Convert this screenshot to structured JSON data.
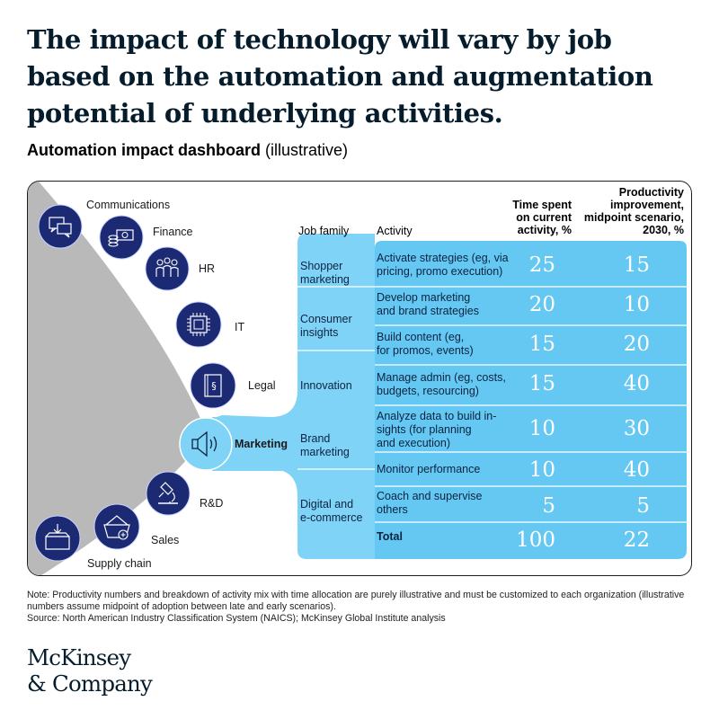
{
  "title": "The impact of technology will vary by job based on the automation and augmentation potential of underlying activities.",
  "subtitle_bold": "Automation impact dashboard",
  "subtitle_rest": "(illustrative)",
  "functions": [
    {
      "label": "Communications",
      "icon": "chat-bubbles-icon"
    },
    {
      "label": "Finance",
      "icon": "money-icon"
    },
    {
      "label": "HR",
      "icon": "people-icon"
    },
    {
      "label": "IT",
      "icon": "chip-icon"
    },
    {
      "label": "Legal",
      "icon": "law-book-icon"
    },
    {
      "label": "Marketing",
      "icon": "speaker-icon"
    },
    {
      "label": "R&D",
      "icon": "microscope-icon"
    },
    {
      "label": "Sales",
      "icon": "basket-icon"
    },
    {
      "label": "Supply chain",
      "icon": "box-icon"
    }
  ],
  "headers": {
    "job_family": "Job family",
    "activity": "Activity",
    "time_spent": [
      "Time spent",
      "on current",
      "activity, %"
    ],
    "productivity": [
      "Productivity",
      "improvement,",
      "midpoint scenario,",
      "2030, %"
    ]
  },
  "job_families": [
    [
      "Shopper",
      "marketing"
    ],
    [
      "Consumer",
      "insights"
    ],
    [
      "Innovation"
    ],
    [
      "Brand",
      "marketing"
    ],
    [
      "Digital and",
      "e-commerce"
    ]
  ],
  "rows": [
    {
      "activity": [
        "Activate strategies (eg, via",
        "pricing, promo execution)"
      ],
      "time": "25",
      "prod": "15"
    },
    {
      "activity": [
        "Develop marketing",
        "and brand strategies"
      ],
      "time": "20",
      "prod": "10"
    },
    {
      "activity": [
        "Build content (eg,",
        "for promos, events)"
      ],
      "time": "15",
      "prod": "20"
    },
    {
      "activity": [
        "Manage admin (eg, costs,",
        "budgets, resourcing)"
      ],
      "time": "15",
      "prod": "40"
    },
    {
      "activity": [
        "Analyze data to build in-",
        "sights (for planning",
        "and execution)"
      ],
      "time": "10",
      "prod": "30"
    },
    {
      "activity": [
        "Monitor performance"
      ],
      "time": "10",
      "prod": "40"
    },
    {
      "activity": [
        "Coach and supervise",
        "others"
      ],
      "time": "5",
      "prod": "5"
    }
  ],
  "total": {
    "label": "Total",
    "time": "100",
    "prod": "22"
  },
  "note": "Note: Productivity numbers and breakdown of activity mix with time allocation are purely illustrative and must be customized to each organization (illustrative numbers assume midpoint of adoption between late and early scenarios).",
  "source": "Source: North American Industry Classification System (NAICS); McKinsey Global Institute analysis",
  "logo": [
    "McKinsey",
    "& Company"
  ],
  "colors": {
    "navy": "#1b2a72",
    "light_blue": "#7fd3f7",
    "mid_blue": "#64c8f3",
    "sky": "#45b6ef",
    "grey": "#b9b9b9"
  }
}
